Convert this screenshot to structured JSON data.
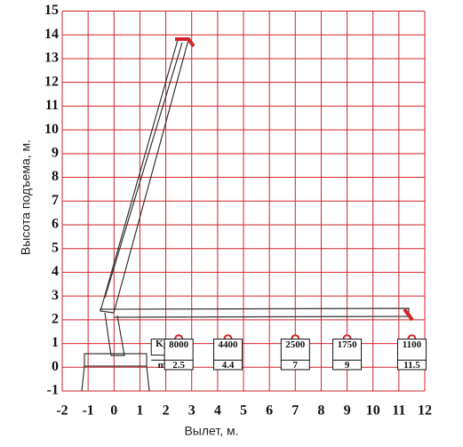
{
  "chart_data": {
    "type": "crane",
    "xlabel": "Вылет, м.",
    "ylabel": "Высота подъема, м.",
    "xlim": [
      -2,
      12
    ],
    "ylim": [
      -1,
      15
    ],
    "xticks": [
      -2,
      -1,
      0,
      1,
      2,
      3,
      4,
      5,
      6,
      7,
      8,
      9,
      10,
      11,
      12
    ],
    "yticks": [
      -1,
      0,
      1,
      2,
      3,
      4,
      5,
      6,
      7,
      8,
      9,
      10,
      11,
      12,
      13,
      14,
      15
    ],
    "grid": true,
    "color": "#d2232a",
    "load_table": {
      "units": [
        "Kg",
        "m"
      ],
      "loads": [
        8000,
        4400,
        2500,
        1750,
        1100
      ],
      "reach": [
        2.5,
        4.4,
        7,
        9,
        11.5
      ]
    }
  }
}
